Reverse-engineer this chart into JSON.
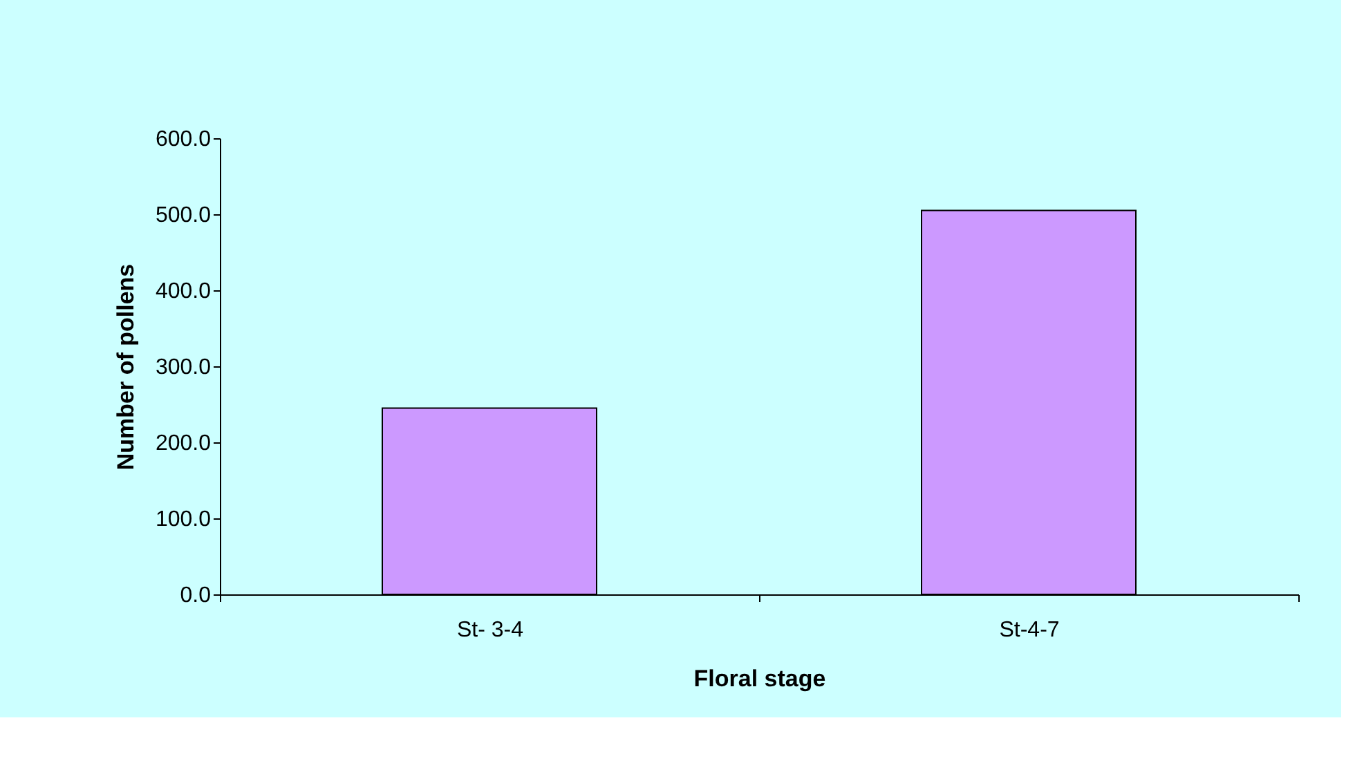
{
  "chart_data": {
    "type": "bar",
    "xlabel": "Floral stage",
    "ylabel": "Number of pollens",
    "categories": [
      "St- 3-4",
      "St-4-7"
    ],
    "series": [
      {
        "color": "#cc99ff",
        "values": [
          245,
          505
        ]
      }
    ],
    "ylim": [
      0,
      600
    ],
    "yticks": [
      {
        "value": 0,
        "label": "0.0"
      },
      {
        "value": 100,
        "label": "100.0"
      },
      {
        "value": 200,
        "label": "200.0"
      },
      {
        "value": 300,
        "label": "300.0"
      },
      {
        "value": 400,
        "label": "400.0"
      },
      {
        "value": 500,
        "label": "500.0"
      },
      {
        "value": 600,
        "label": "600.0"
      }
    ],
    "grid": false
  }
}
